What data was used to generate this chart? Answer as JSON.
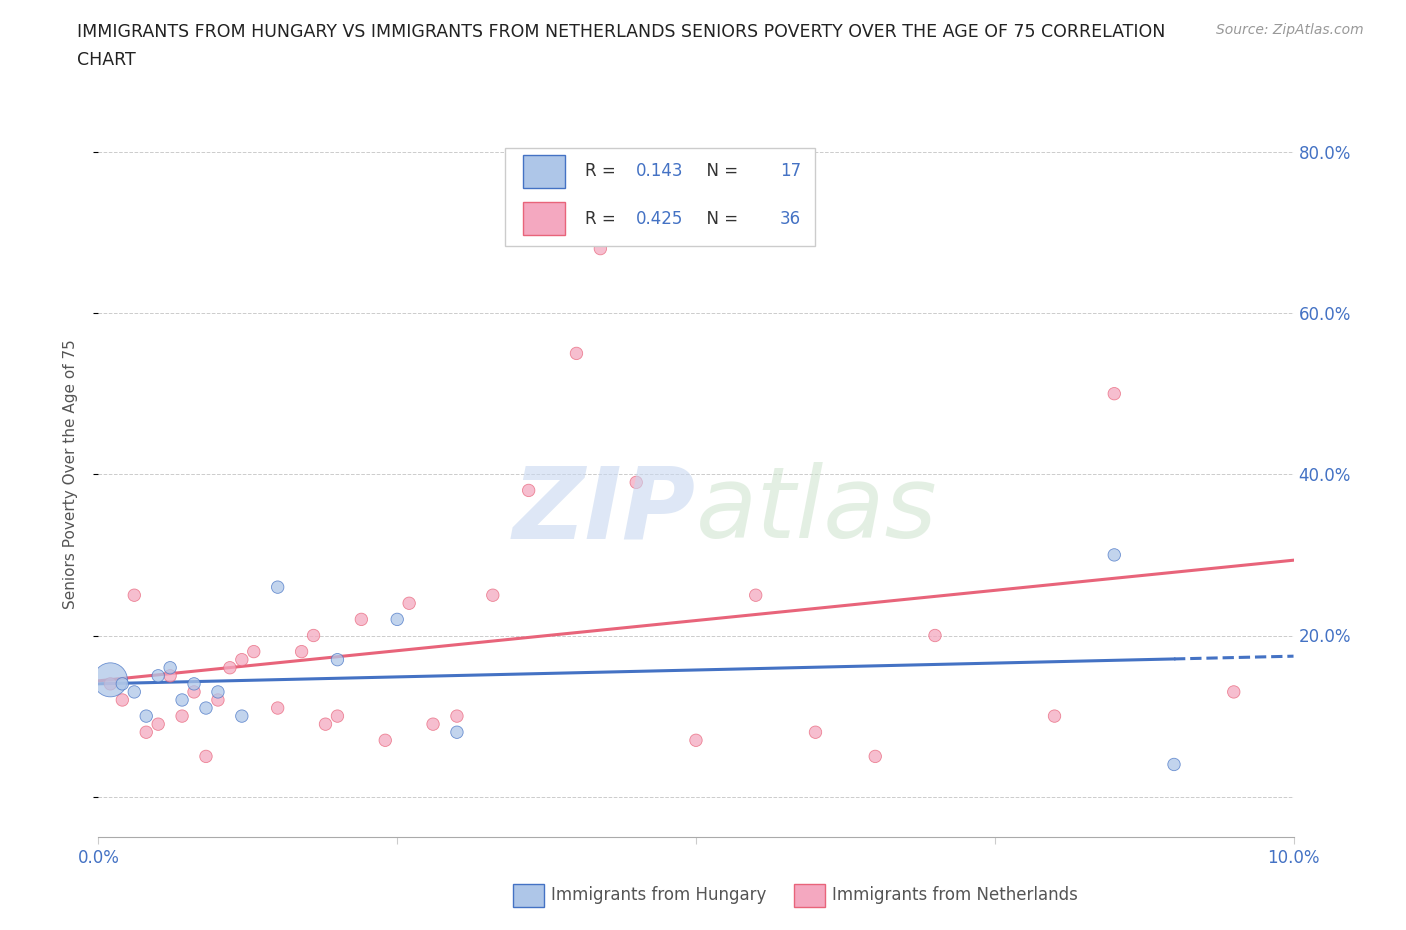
{
  "title_line1": "IMMIGRANTS FROM HUNGARY VS IMMIGRANTS FROM NETHERLANDS SENIORS POVERTY OVER THE AGE OF 75 CORRELATION",
  "title_line2": "CHART",
  "source": "Source: ZipAtlas.com",
  "ylabel": "Seniors Poverty Over the Age of 75",
  "xlim": [
    0.0,
    0.1
  ],
  "ylim": [
    -0.05,
    0.85
  ],
  "yticks": [
    0.0,
    0.2,
    0.4,
    0.6,
    0.8
  ],
  "ytick_labels": [
    "",
    "20.0%",
    "40.0%",
    "60.0%",
    "80.0%"
  ],
  "xticks": [
    0.0,
    0.025,
    0.05,
    0.075,
    0.1
  ],
  "xtick_labels": [
    "0.0%",
    "",
    "",
    "",
    "10.0%"
  ],
  "hungary_color": "#aec6e8",
  "netherlands_color": "#f4a8c0",
  "hungary_line_color": "#4472c4",
  "netherlands_line_color": "#e8647a",
  "background_color": "#ffffff",
  "legend_R_hungary": "0.143",
  "legend_N_hungary": "17",
  "legend_R_netherlands": "0.425",
  "legend_N_netherlands": "36",
  "hungary_x": [
    0.001,
    0.002,
    0.003,
    0.004,
    0.005,
    0.006,
    0.007,
    0.008,
    0.009,
    0.01,
    0.012,
    0.015,
    0.02,
    0.025,
    0.03,
    0.085,
    0.09
  ],
  "hungary_y": [
    0.145,
    0.14,
    0.13,
    0.1,
    0.15,
    0.16,
    0.12,
    0.14,
    0.11,
    0.13,
    0.1,
    0.26,
    0.17,
    0.22,
    0.08,
    0.3,
    0.04
  ],
  "hungary_size": [
    600,
    80,
    80,
    80,
    80,
    80,
    80,
    80,
    80,
    80,
    80,
    80,
    80,
    80,
    80,
    80,
    80
  ],
  "netherlands_x": [
    0.001,
    0.002,
    0.003,
    0.004,
    0.005,
    0.006,
    0.007,
    0.008,
    0.009,
    0.01,
    0.011,
    0.012,
    0.013,
    0.015,
    0.017,
    0.018,
    0.019,
    0.02,
    0.022,
    0.024,
    0.026,
    0.028,
    0.03,
    0.033,
    0.036,
    0.04,
    0.042,
    0.045,
    0.05,
    0.055,
    0.06,
    0.065,
    0.07,
    0.08,
    0.085,
    0.095
  ],
  "netherlands_y": [
    0.14,
    0.12,
    0.25,
    0.08,
    0.09,
    0.15,
    0.1,
    0.13,
    0.05,
    0.12,
    0.16,
    0.17,
    0.18,
    0.11,
    0.18,
    0.2,
    0.09,
    0.1,
    0.22,
    0.07,
    0.24,
    0.09,
    0.1,
    0.25,
    0.38,
    0.55,
    0.68,
    0.39,
    0.07,
    0.25,
    0.08,
    0.05,
    0.2,
    0.1,
    0.5,
    0.13
  ],
  "netherlands_size": [
    80,
    80,
    80,
    80,
    80,
    80,
    80,
    80,
    80,
    80,
    80,
    80,
    80,
    80,
    80,
    80,
    80,
    80,
    80,
    80,
    80,
    80,
    80,
    80,
    80,
    80,
    80,
    80,
    80,
    80,
    80,
    80,
    80,
    80,
    80,
    80
  ]
}
